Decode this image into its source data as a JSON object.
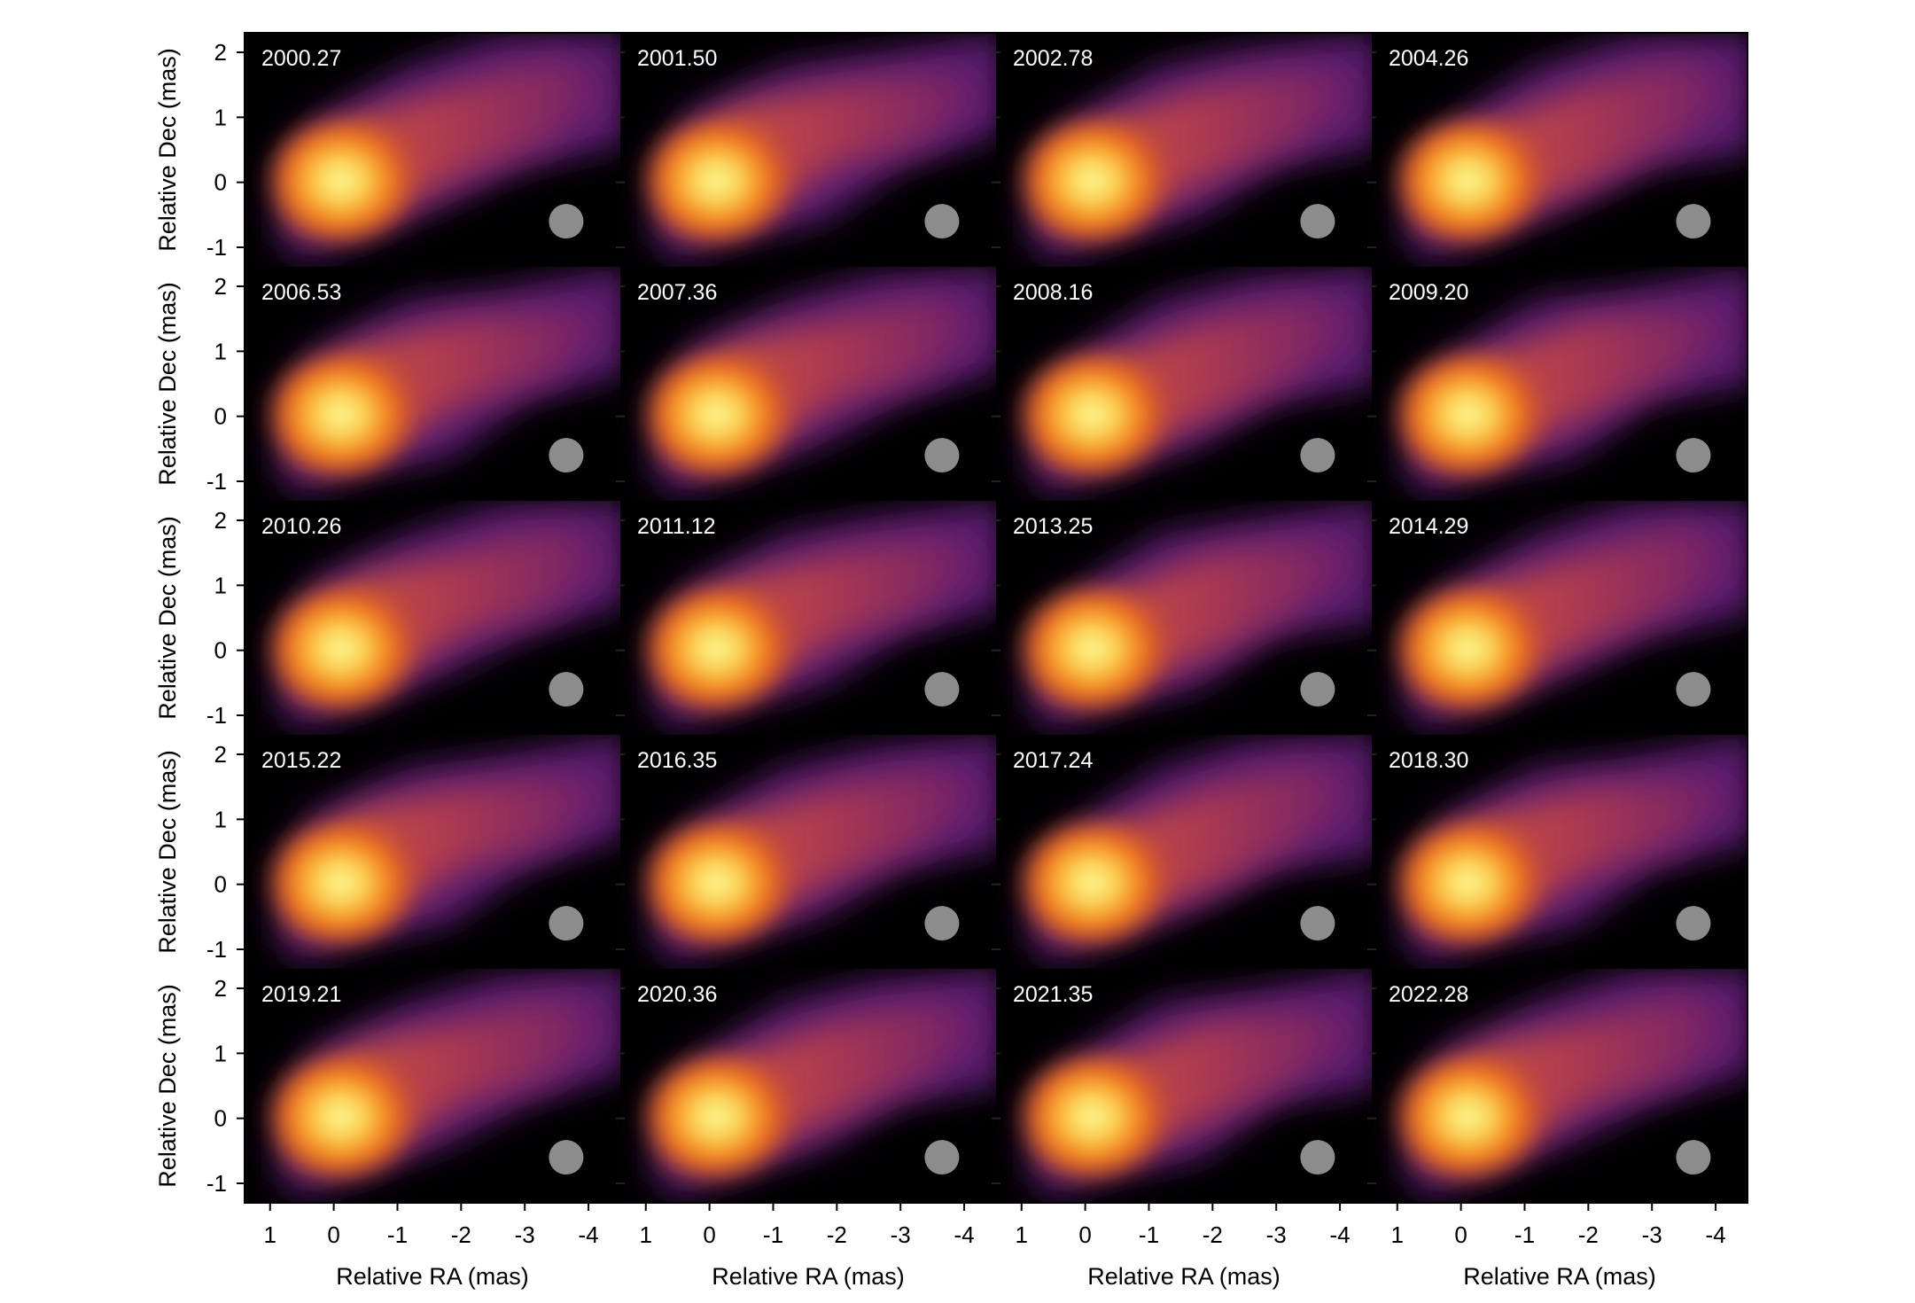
{
  "chart_data": {
    "type": "heatmap",
    "grid": {
      "rows": 5,
      "cols": 4
    },
    "xlabel": "Relative RA (mas)",
    "ylabel": "Relative Dec (mas)",
    "x_ticks": [
      1,
      0,
      -1,
      -2,
      -3,
      -4
    ],
    "y_ticks": [
      2,
      1,
      0,
      -1
    ],
    "xlim": [
      1.4,
      -4.5
    ],
    "ylim": [
      -1.3,
      2.3
    ],
    "colormap": "inferno",
    "beam_color": "#8c8c8c",
    "panels": [
      {
        "epoch": "2000.27"
      },
      {
        "epoch": "2001.50"
      },
      {
        "epoch": "2002.78"
      },
      {
        "epoch": "2004.26"
      },
      {
        "epoch": "2006.53"
      },
      {
        "epoch": "2007.36"
      },
      {
        "epoch": "2008.16"
      },
      {
        "epoch": "2009.20"
      },
      {
        "epoch": "2010.26"
      },
      {
        "epoch": "2011.12"
      },
      {
        "epoch": "2013.25"
      },
      {
        "epoch": "2014.29"
      },
      {
        "epoch": "2015.22"
      },
      {
        "epoch": "2016.35"
      },
      {
        "epoch": "2017.24"
      },
      {
        "epoch": "2018.30"
      },
      {
        "epoch": "2019.21"
      },
      {
        "epoch": "2020.36"
      },
      {
        "epoch": "2021.35"
      },
      {
        "epoch": "2022.28"
      }
    ]
  }
}
